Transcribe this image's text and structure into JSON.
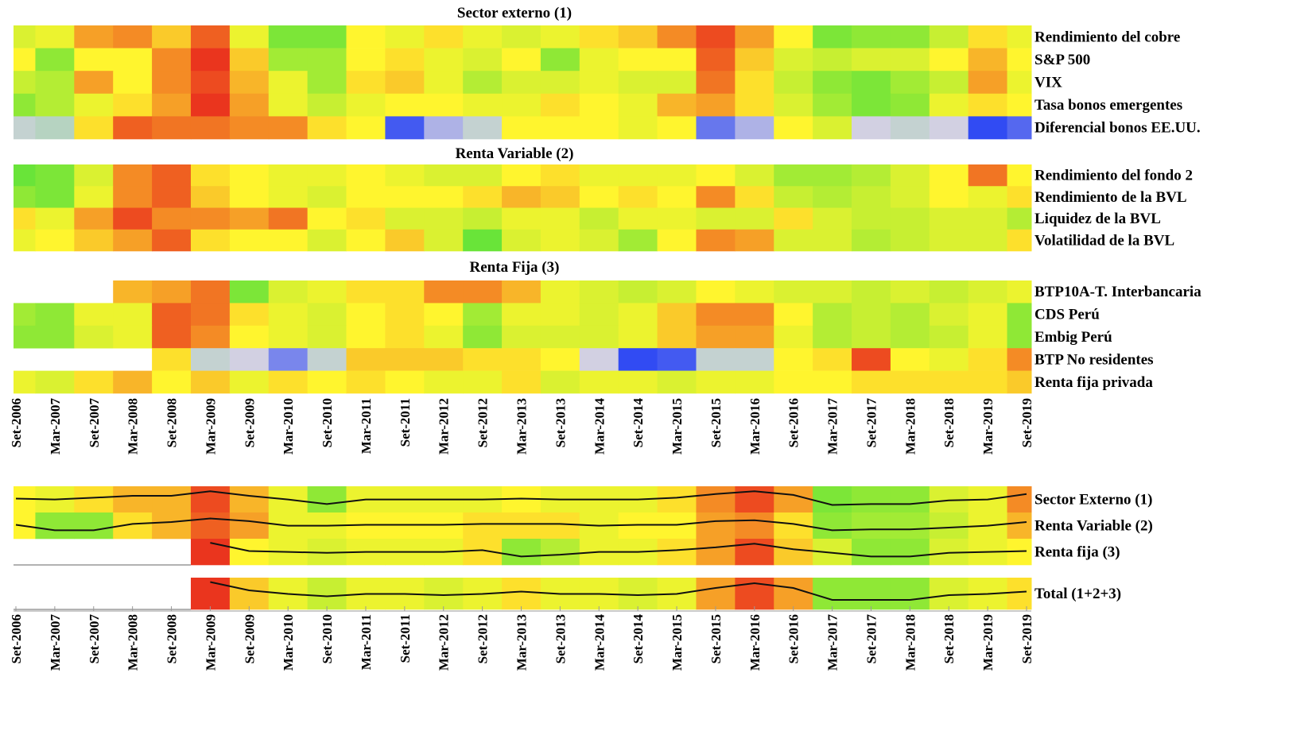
{
  "chart_data": {
    "type": "heatmap",
    "categories": [
      "Set-2006",
      "Mar-2007",
      "Set-2007",
      "Mar-2008",
      "Set-2008",
      "Mar-2009",
      "Set-2009",
      "Mar-2010",
      "Set-2010",
      "Mar-2011",
      "Set-2011",
      "Mar-2012",
      "Set-2012",
      "Mar-2013",
      "Set-2013",
      "Mar-2014",
      "Set-2014",
      "Mar-2015",
      "Set-2015",
      "Mar-2016",
      "Set-2016",
      "Mar-2017",
      "Set-2017",
      "Mar-2018",
      "Set-2018",
      "Mar-2019",
      "Set-2019"
    ],
    "colorscale": [
      {
        "value": -100,
        "color": "#1f3cf5"
      },
      {
        "value": -50,
        "color": "#d2d0e2"
      },
      {
        "value": 0,
        "color": "#44e03c"
      },
      {
        "value": 50,
        "color": "#fff52e"
      },
      {
        "value": 100,
        "color": "#e8201c"
      }
    ],
    "panels": [
      {
        "title": "Sector externo (1)",
        "rows": [
          {
            "name": "Rendimiento del cobre",
            "values": [
              40,
              45,
              70,
              75,
              60,
              85,
              45,
              15,
              15,
              50,
              45,
              55,
              45,
              40,
              45,
              55,
              60,
              75,
              90,
              70,
              50,
              15,
              20,
              20,
              35,
              55,
              45
            ]
          },
          {
            "name": "S&P 500",
            "values": [
              50,
              20,
              50,
              50,
              75,
              95,
              60,
              25,
              25,
              50,
              55,
              45,
              40,
              50,
              20,
              45,
              50,
              50,
              85,
              60,
              40,
              35,
              40,
              40,
              50,
              65,
              50
            ]
          },
          {
            "name": "VIX",
            "values": [
              35,
              30,
              70,
              50,
              75,
              90,
              65,
              45,
              25,
              55,
              60,
              45,
              30,
              40,
              40,
              45,
              40,
              40,
              80,
              55,
              35,
              20,
              15,
              25,
              35,
              70,
              45
            ]
          },
          {
            "name": "Tasa bonos emergentes",
            "values": [
              20,
              30,
              45,
              55,
              70,
              95,
              70,
              45,
              35,
              45,
              50,
              50,
              45,
              45,
              55,
              50,
              45,
              65,
              70,
              55,
              40,
              25,
              15,
              20,
              45,
              55,
              50
            ]
          },
          {
            "name": "Diferencial bonos EE.UU.",
            "values": [
              -45,
              -40,
              55,
              85,
              80,
              80,
              75,
              75,
              55,
              50,
              -90,
              -60,
              -45,
              50,
              50,
              50,
              45,
              50,
              -80,
              -60,
              50,
              40,
              -50,
              -45,
              -50,
              -95,
              -85
            ]
          }
        ]
      },
      {
        "title": "Renta Variable (2)",
        "rows": [
          {
            "name": "Rendimiento del fondo 2",
            "values": [
              10,
              15,
              40,
              75,
              85,
              55,
              50,
              45,
              45,
              50,
              45,
              40,
              40,
              50,
              55,
              45,
              45,
              45,
              50,
              40,
              25,
              25,
              30,
              40,
              50,
              80,
              50
            ]
          },
          {
            "name": "Rendimiento de la BVL",
            "values": [
              20,
              15,
              45,
              75,
              85,
              60,
              50,
              45,
              40,
              50,
              50,
              50,
              55,
              65,
              60,
              50,
              55,
              50,
              75,
              55,
              35,
              30,
              35,
              40,
              50,
              45,
              55
            ]
          },
          {
            "name": "Liquidez de la BVL",
            "values": [
              55,
              45,
              70,
              90,
              75,
              75,
              70,
              80,
              50,
              55,
              40,
              40,
              35,
              45,
              45,
              35,
              45,
              45,
              40,
              40,
              55,
              40,
              35,
              35,
              40,
              40,
              30
            ]
          },
          {
            "name": "Volatilidad de la BVL",
            "values": [
              45,
              50,
              60,
              70,
              85,
              55,
              50,
              50,
              40,
              50,
              60,
              40,
              10,
              40,
              45,
              40,
              25,
              50,
              75,
              70,
              40,
              40,
              30,
              35,
              40,
              40,
              55
            ]
          }
        ]
      },
      {
        "title": "Renta Fija (3)",
        "rows": [
          {
            "name": "BTP10A-T. Interbancaria",
            "values": [
              null,
              null,
              null,
              65,
              70,
              80,
              15,
              40,
              45,
              55,
              55,
              75,
              75,
              65,
              45,
              40,
              35,
              40,
              50,
              45,
              40,
              40,
              35,
              40,
              35,
              40,
              45
            ]
          },
          {
            "name": "CDS Perú",
            "values": [
              25,
              20,
              45,
              45,
              85,
              80,
              55,
              45,
              40,
              50,
              55,
              50,
              25,
              45,
              45,
              40,
              45,
              60,
              75,
              75,
              50,
              30,
              35,
              30,
              40,
              45,
              20
            ]
          },
          {
            "name": "Embig Perú",
            "values": [
              20,
              20,
              40,
              45,
              85,
              75,
              50,
              45,
              40,
              50,
              55,
              45,
              20,
              40,
              40,
              40,
              45,
              60,
              70,
              70,
              45,
              30,
              35,
              30,
              35,
              45,
              20
            ]
          },
          {
            "name": "BTP No residentes",
            "values": [
              null,
              null,
              null,
              null,
              55,
              -45,
              -50,
              -75,
              -45,
              60,
              60,
              60,
              55,
              55,
              50,
              -50,
              -95,
              -90,
              -45,
              -45,
              50,
              55,
              90,
              50,
              45,
              55,
              75
            ]
          },
          {
            "name": "Renta fija privada",
            "values": [
              45,
              40,
              55,
              65,
              50,
              60,
              45,
              55,
              50,
              55,
              50,
              45,
              45,
              55,
              40,
              45,
              45,
              40,
              45,
              45,
              50,
              50,
              55,
              55,
              55,
              55,
              60
            ]
          }
        ]
      },
      {
        "lines": true,
        "rows": [
          {
            "name": "Sector Externo (1)",
            "values": [
              50,
              45,
              55,
              65,
              65,
              90,
              65,
              45,
              20,
              45,
              45,
              45,
              45,
              50,
              45,
              45,
              45,
              55,
              75,
              90,
              70,
              15,
              20,
              20,
              40,
              45,
              75
            ]
          },
          {
            "name": "Renta Variable (2)",
            "values": [
              50,
              20,
              20,
              55,
              65,
              85,
              70,
              45,
              45,
              50,
              50,
              50,
              55,
              55,
              55,
              45,
              50,
              50,
              70,
              75,
              55,
              20,
              25,
              25,
              35,
              45,
              65
            ]
          },
          {
            "name": "Renta fija (3)",
            "values": [
              null,
              null,
              null,
              null,
              null,
              95,
              50,
              45,
              40,
              45,
              45,
              45,
              55,
              20,
              30,
              45,
              45,
              55,
              70,
              90,
              60,
              40,
              20,
              20,
              40,
              45,
              50
            ]
          }
        ]
      },
      {
        "lines": true,
        "rows": [
          {
            "name": "Total (1+2+3)",
            "values": [
              null,
              null,
              null,
              null,
              null,
              95,
              60,
              45,
              35,
              45,
              45,
              40,
              45,
              55,
              45,
              45,
              40,
              45,
              70,
              90,
              70,
              20,
              20,
              20,
              40,
              45,
              55
            ]
          }
        ]
      }
    ]
  }
}
